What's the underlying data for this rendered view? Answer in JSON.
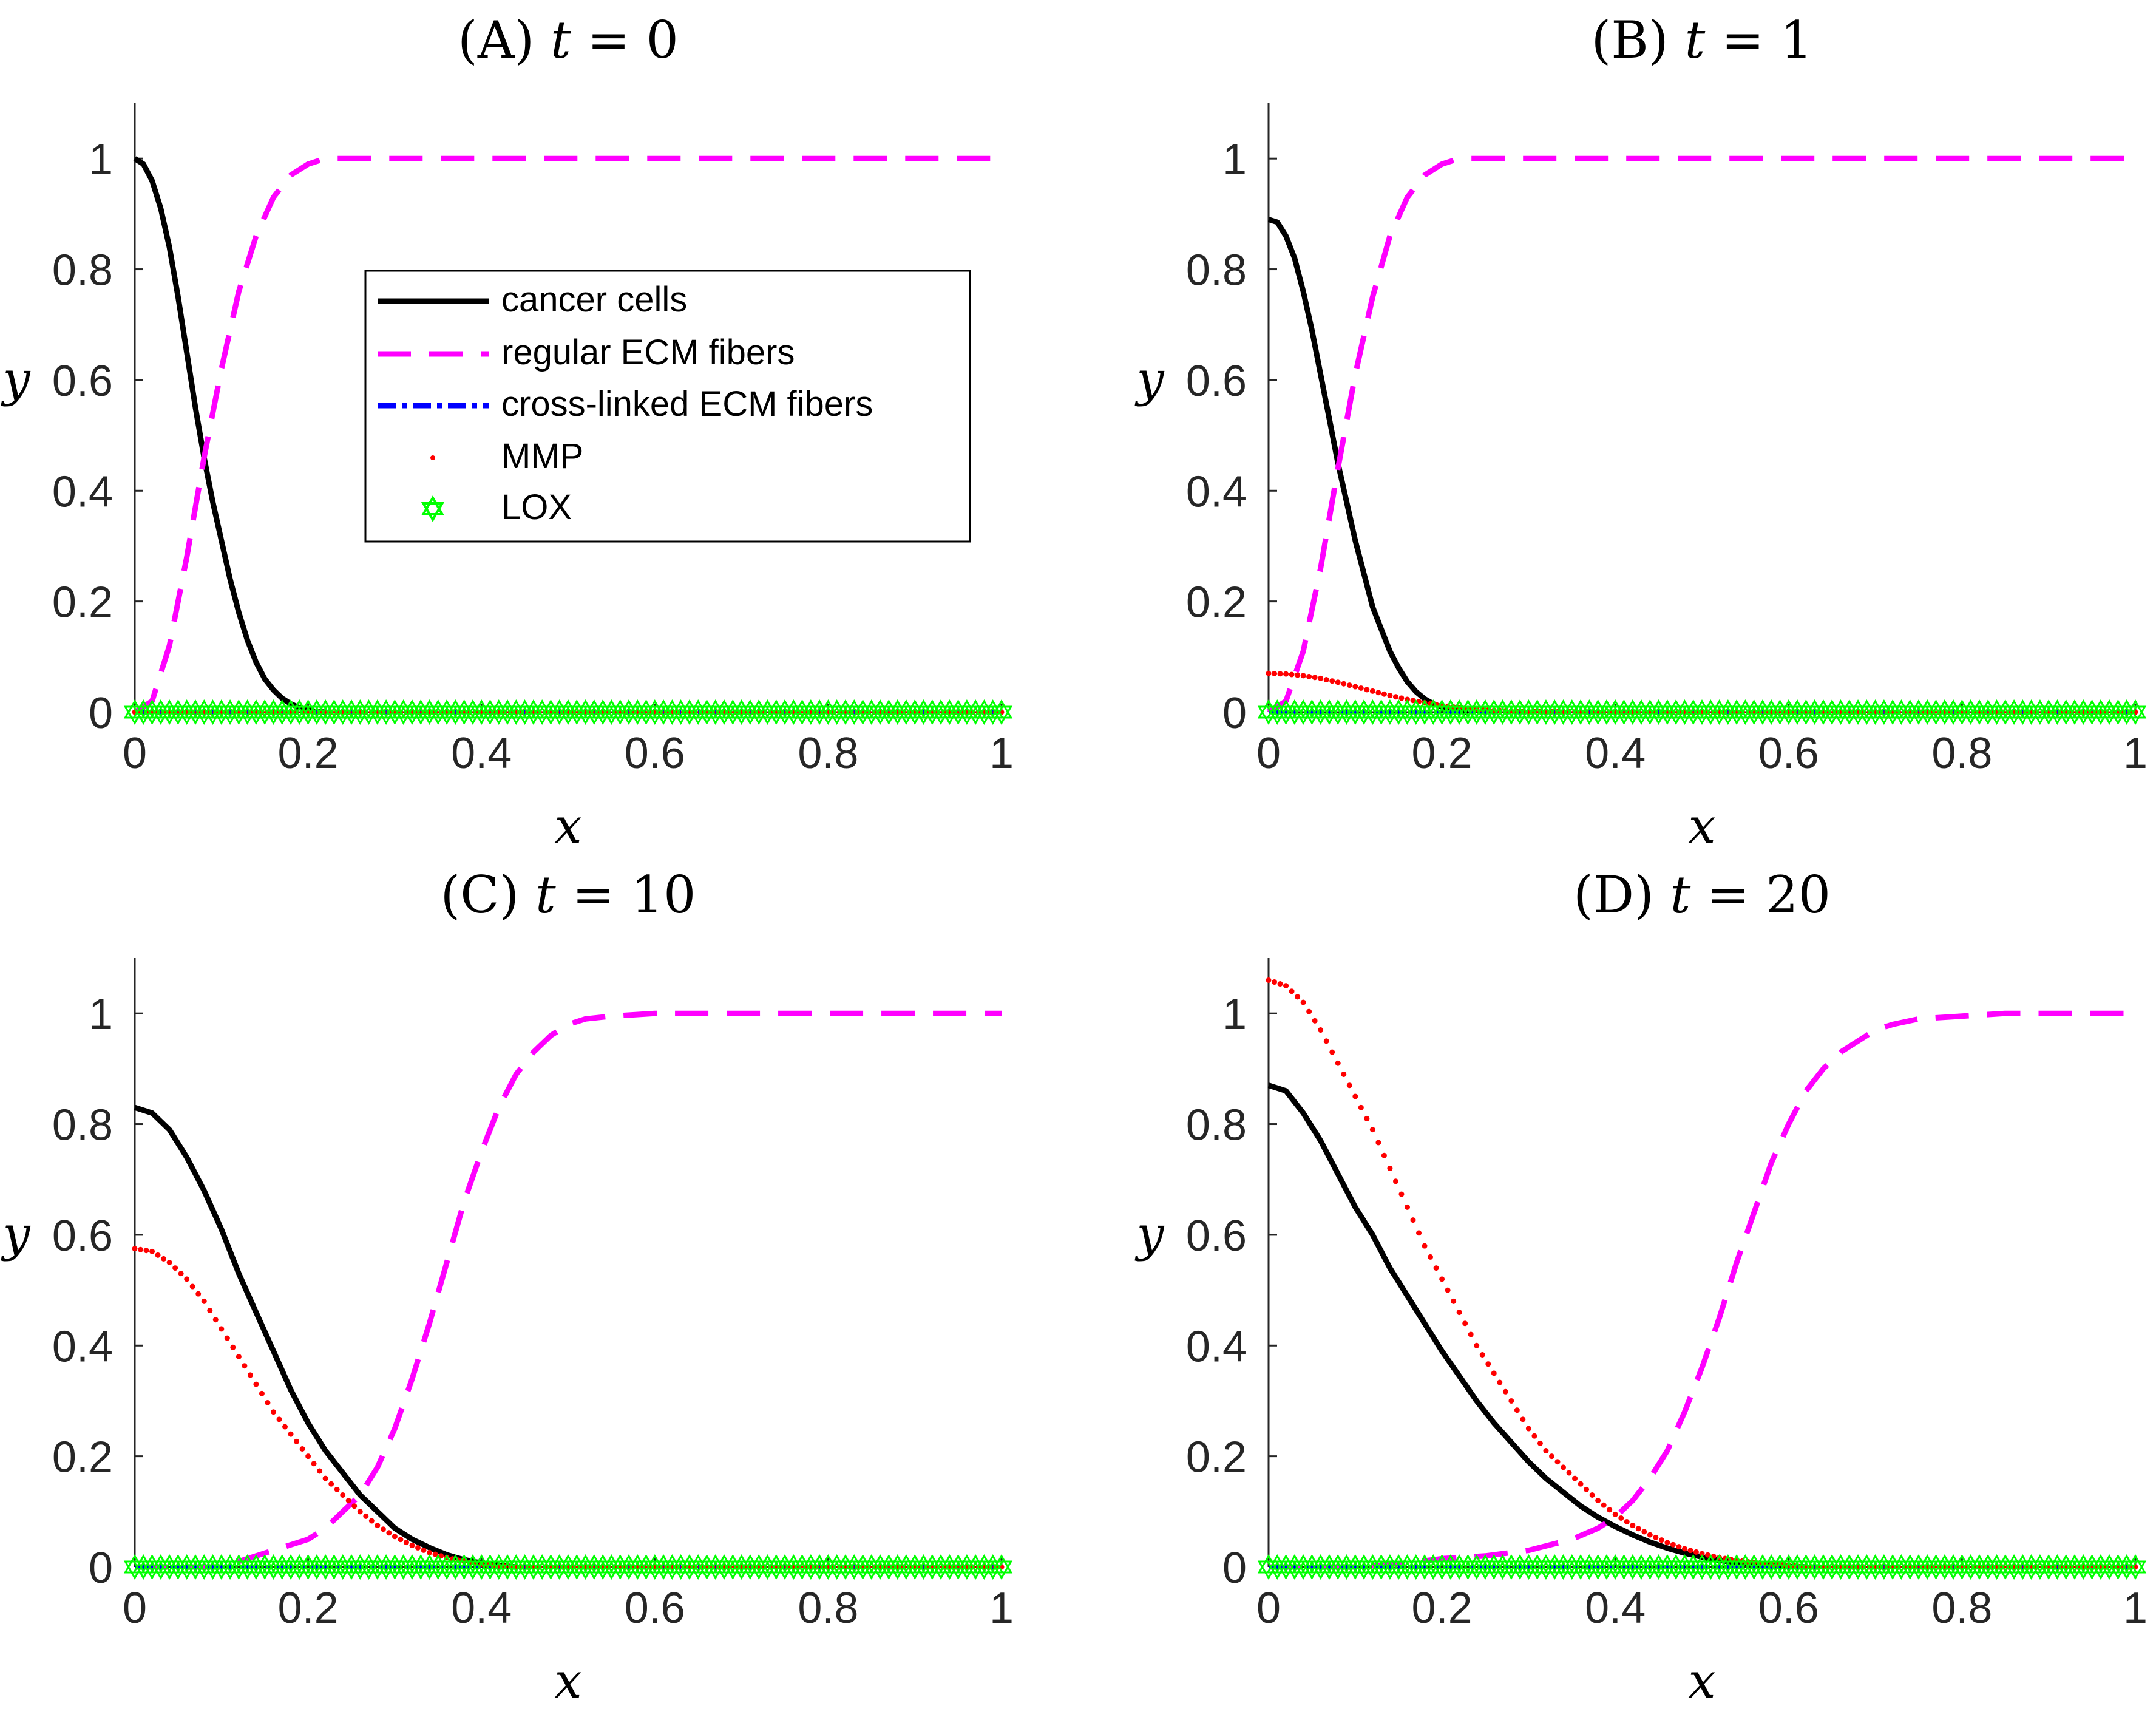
{
  "figure": {
    "legend": {
      "entries": [
        "cancer cells",
        "regular ECM fibers",
        "cross-linked ECM fibers",
        "MMP",
        "LOX"
      ]
    },
    "colors": {
      "cancer_cells": "#000000",
      "regular_ecm": "#ff00ff",
      "crosslinked_ecm": "#0000ff",
      "mmp": "#ff0000",
      "lox": "#00ff00"
    }
  },
  "chart_data": [
    {
      "type": "line",
      "title": "(A) t = 0",
      "title_prefix": "(A)",
      "title_var": "t",
      "title_rhs": "= 0",
      "xlabel": "x",
      "ylabel": "y",
      "xlim": [
        0,
        1
      ],
      "ylim": [
        0,
        1.1
      ],
      "x_ticks": [
        "0",
        "0.2",
        "0.4",
        "0.6",
        "0.8",
        "1"
      ],
      "y_ticks": [
        "0",
        "0.2",
        "0.4",
        "0.6",
        "0.8",
        "1"
      ],
      "series": [
        {
          "name": "cancer cells",
          "x": [
            0,
            0.01,
            0.02,
            0.03,
            0.04,
            0.05,
            0.06,
            0.07,
            0.08,
            0.09,
            0.1,
            0.11,
            0.12,
            0.13,
            0.14,
            0.15,
            0.16,
            0.17,
            0.18,
            0.19,
            0.2,
            0.21,
            0.22
          ],
          "values": [
            1.0,
            0.99,
            0.96,
            0.91,
            0.84,
            0.75,
            0.65,
            0.55,
            0.46,
            0.38,
            0.31,
            0.24,
            0.18,
            0.13,
            0.09,
            0.06,
            0.04,
            0.025,
            0.015,
            0.008,
            0.004,
            0.001,
            0
          ]
        },
        {
          "name": "regular ECM fibers",
          "x": [
            0,
            0.02,
            0.04,
            0.06,
            0.08,
            0.1,
            0.12,
            0.14,
            0.16,
            0.18,
            0.2,
            0.22,
            0.24,
            0.26,
            0.3,
            0.4,
            0.6,
            0.8,
            1.0
          ],
          "values": [
            0,
            0.02,
            0.12,
            0.28,
            0.46,
            0.62,
            0.76,
            0.86,
            0.93,
            0.97,
            0.99,
            1.0,
            1.0,
            1.0,
            1.0,
            1.0,
            1.0,
            1.0,
            1.0
          ]
        },
        {
          "name": "cross-linked ECM fibers",
          "x": [
            0,
            1
          ],
          "values": [
            0,
            0
          ]
        },
        {
          "name": "MMP",
          "x": [
            0,
            1
          ],
          "values": [
            0,
            0
          ]
        },
        {
          "name": "LOX",
          "x": [
            0,
            1
          ],
          "values": [
            0,
            0
          ]
        }
      ]
    },
    {
      "type": "line",
      "title": "(B) t = 1",
      "title_prefix": "(B)",
      "title_var": "t",
      "title_rhs": "= 1",
      "xlabel": "x",
      "ylabel": "y",
      "xlim": [
        0,
        1
      ],
      "ylim": [
        0,
        1.1
      ],
      "x_ticks": [
        "0",
        "0.2",
        "0.4",
        "0.6",
        "0.8",
        "1"
      ],
      "y_ticks": [
        "0",
        "0.2",
        "0.4",
        "0.6",
        "0.8",
        "1"
      ],
      "series": [
        {
          "name": "cancer cells",
          "x": [
            0,
            0.01,
            0.02,
            0.03,
            0.04,
            0.05,
            0.06,
            0.07,
            0.08,
            0.09,
            0.1,
            0.11,
            0.12,
            0.13,
            0.14,
            0.15,
            0.16,
            0.17,
            0.18,
            0.19,
            0.2,
            0.21,
            0.22,
            0.23
          ],
          "values": [
            0.89,
            0.885,
            0.86,
            0.82,
            0.76,
            0.69,
            0.61,
            0.53,
            0.45,
            0.38,
            0.31,
            0.25,
            0.19,
            0.15,
            0.11,
            0.08,
            0.055,
            0.037,
            0.024,
            0.015,
            0.009,
            0.005,
            0.002,
            0
          ]
        },
        {
          "name": "regular ECM fibers",
          "x": [
            0,
            0.02,
            0.04,
            0.06,
            0.08,
            0.1,
            0.12,
            0.14,
            0.16,
            0.18,
            0.2,
            0.22,
            0.24,
            0.26,
            0.3,
            0.4,
            0.6,
            0.8,
            1.0
          ],
          "values": [
            0,
            0.02,
            0.11,
            0.26,
            0.44,
            0.61,
            0.75,
            0.86,
            0.93,
            0.97,
            0.99,
            1.0,
            1.0,
            1.0,
            1.0,
            1.0,
            1.0,
            1.0,
            1.0
          ]
        },
        {
          "name": "cross-linked ECM fibers",
          "x": [
            0,
            1
          ],
          "values": [
            0,
            0
          ]
        },
        {
          "name": "MMP",
          "x": [
            0,
            0.02,
            0.04,
            0.06,
            0.08,
            0.1,
            0.12,
            0.14,
            0.16,
            0.18,
            0.2,
            0.22,
            0.25,
            0.3,
            0.4,
            0.6,
            0.8,
            1.0
          ],
          "values": [
            0.07,
            0.069,
            0.066,
            0.061,
            0.054,
            0.046,
            0.038,
            0.03,
            0.023,
            0.017,
            0.012,
            0.008,
            0.004,
            0.001,
            0,
            0,
            0,
            0
          ]
        },
        {
          "name": "LOX",
          "x": [
            0,
            1
          ],
          "values": [
            0,
            0
          ]
        }
      ]
    },
    {
      "type": "line",
      "title": "(C) t = 10",
      "title_prefix": "(C)",
      "title_var": "t",
      "title_rhs": "= 10",
      "xlabel": "x",
      "ylabel": "y",
      "xlim": [
        0,
        1
      ],
      "ylim": [
        0,
        1.1
      ],
      "x_ticks": [
        "0",
        "0.2",
        "0.4",
        "0.6",
        "0.8",
        "1"
      ],
      "y_ticks": [
        "0",
        "0.2",
        "0.4",
        "0.6",
        "0.8",
        "1"
      ],
      "series": [
        {
          "name": "cancer cells",
          "x": [
            0,
            0.02,
            0.04,
            0.06,
            0.08,
            0.1,
            0.12,
            0.14,
            0.16,
            0.18,
            0.2,
            0.22,
            0.24,
            0.26,
            0.28,
            0.3,
            0.32,
            0.34,
            0.36,
            0.38,
            0.4,
            0.42,
            0.44
          ],
          "values": [
            0.83,
            0.82,
            0.79,
            0.74,
            0.68,
            0.61,
            0.53,
            0.46,
            0.39,
            0.32,
            0.26,
            0.21,
            0.17,
            0.13,
            0.1,
            0.07,
            0.05,
            0.035,
            0.022,
            0.013,
            0.007,
            0.003,
            0
          ]
        },
        {
          "name": "regular ECM fibers",
          "x": [
            0,
            0.05,
            0.1,
            0.14,
            0.18,
            0.2,
            0.22,
            0.24,
            0.26,
            0.28,
            0.3,
            0.32,
            0.34,
            0.36,
            0.38,
            0.4,
            0.42,
            0.44,
            0.46,
            0.48,
            0.5,
            0.52,
            0.55,
            0.6,
            0.7,
            0.8,
            0.9,
            1.0
          ],
          "values": [
            0,
            0,
            0,
            0.02,
            0.04,
            0.05,
            0.07,
            0.1,
            0.13,
            0.18,
            0.25,
            0.34,
            0.44,
            0.55,
            0.66,
            0.75,
            0.83,
            0.89,
            0.93,
            0.96,
            0.98,
            0.99,
            0.995,
            1.0,
            1.0,
            1.0,
            1.0,
            1.0
          ]
        },
        {
          "name": "cross-linked ECM fibers",
          "x": [
            0,
            1
          ],
          "values": [
            0,
            0
          ]
        },
        {
          "name": "MMP",
          "x": [
            0,
            0.02,
            0.04,
            0.06,
            0.08,
            0.1,
            0.12,
            0.14,
            0.16,
            0.18,
            0.2,
            0.22,
            0.24,
            0.26,
            0.28,
            0.3,
            0.32,
            0.34,
            0.36,
            0.38,
            0.4,
            0.42,
            0.44
          ],
          "values": [
            0.575,
            0.57,
            0.55,
            0.52,
            0.48,
            0.43,
            0.38,
            0.33,
            0.28,
            0.24,
            0.2,
            0.16,
            0.13,
            0.1,
            0.075,
            0.055,
            0.039,
            0.026,
            0.017,
            0.01,
            0.005,
            0.002,
            0
          ]
        },
        {
          "name": "LOX",
          "x": [
            0,
            1
          ],
          "values": [
            0,
            0
          ]
        }
      ]
    },
    {
      "type": "line",
      "title": "(D) t = 20",
      "title_prefix": "(D)",
      "title_var": "t",
      "title_rhs": "= 20",
      "xlabel": "x",
      "ylabel": "y",
      "xlim": [
        0,
        1
      ],
      "ylim": [
        0,
        1.1
      ],
      "x_ticks": [
        "0",
        "0.2",
        "0.4",
        "0.6",
        "0.8",
        "1"
      ],
      "y_ticks": [
        "0",
        "0.2",
        "0.4",
        "0.6",
        "0.8",
        "1"
      ],
      "series": [
        {
          "name": "cancer cells",
          "x": [
            0,
            0.02,
            0.04,
            0.06,
            0.08,
            0.1,
            0.12,
            0.14,
            0.16,
            0.18,
            0.2,
            0.22,
            0.24,
            0.26,
            0.28,
            0.3,
            0.32,
            0.34,
            0.36,
            0.38,
            0.4,
            0.42,
            0.44,
            0.46,
            0.48,
            0.5,
            0.52,
            0.54,
            0.56,
            0.58,
            0.6,
            0.62
          ],
          "values": [
            0.87,
            0.86,
            0.82,
            0.77,
            0.71,
            0.65,
            0.6,
            0.54,
            0.49,
            0.44,
            0.39,
            0.345,
            0.3,
            0.26,
            0.225,
            0.19,
            0.16,
            0.135,
            0.11,
            0.09,
            0.073,
            0.058,
            0.045,
            0.034,
            0.025,
            0.018,
            0.012,
            0.008,
            0.005,
            0.003,
            0.001,
            0
          ]
        },
        {
          "name": "regular ECM fibers",
          "x": [
            0,
            0.1,
            0.15,
            0.2,
            0.25,
            0.3,
            0.35,
            0.38,
            0.4,
            0.42,
            0.44,
            0.46,
            0.48,
            0.5,
            0.52,
            0.54,
            0.56,
            0.58,
            0.6,
            0.62,
            0.64,
            0.66,
            0.68,
            0.7,
            0.72,
            0.75,
            0.8,
            0.85,
            0.9,
            1.0
          ],
          "values": [
            0,
            0,
            0.005,
            0.015,
            0.02,
            0.03,
            0.05,
            0.07,
            0.09,
            0.12,
            0.16,
            0.21,
            0.28,
            0.36,
            0.45,
            0.55,
            0.64,
            0.73,
            0.8,
            0.86,
            0.9,
            0.93,
            0.95,
            0.97,
            0.98,
            0.99,
            0.995,
            1.0,
            1.0,
            1.0
          ]
        },
        {
          "name": "cross-linked ECM fibers",
          "x": [
            0,
            1
          ],
          "values": [
            0,
            0
          ]
        },
        {
          "name": "MMP",
          "x": [
            0,
            0.02,
            0.04,
            0.06,
            0.08,
            0.1,
            0.12,
            0.14,
            0.16,
            0.18,
            0.2,
            0.22,
            0.24,
            0.26,
            0.28,
            0.3,
            0.32,
            0.34,
            0.36,
            0.38,
            0.4,
            0.42,
            0.44,
            0.46,
            0.48,
            0.5,
            0.52,
            0.54,
            0.56,
            0.58,
            0.6,
            0.62
          ],
          "values": [
            1.06,
            1.05,
            1.02,
            0.97,
            0.91,
            0.85,
            0.79,
            0.72,
            0.65,
            0.58,
            0.52,
            0.46,
            0.4,
            0.35,
            0.3,
            0.25,
            0.21,
            0.18,
            0.15,
            0.12,
            0.095,
            0.075,
            0.058,
            0.044,
            0.033,
            0.024,
            0.017,
            0.012,
            0.008,
            0.005,
            0.003,
            0
          ]
        },
        {
          "name": "LOX",
          "x": [
            0,
            1
          ],
          "values": [
            0,
            0
          ]
        }
      ]
    }
  ]
}
